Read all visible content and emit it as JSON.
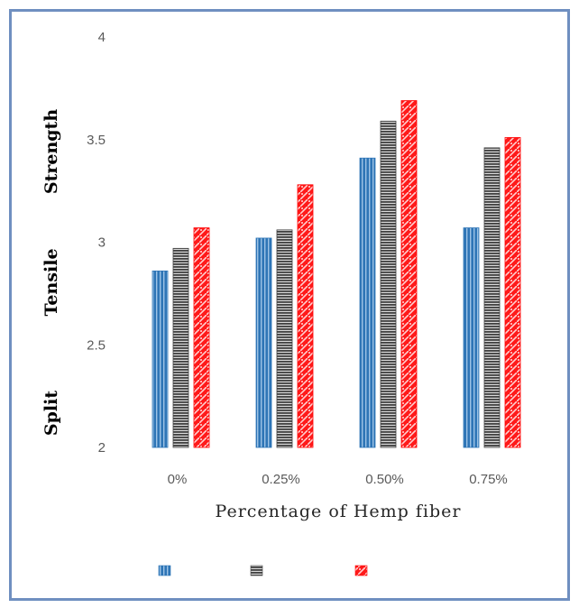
{
  "chart_data": {
    "type": "bar",
    "categories": [
      "0%",
      "0.25%",
      "0.50%",
      "0.75%"
    ],
    "series": [
      {
        "values": [
          2.86,
          3.02,
          3.41,
          3.07
        ],
        "color": "#2e75b6",
        "pattern": "vertical-stripes"
      },
      {
        "values": [
          2.97,
          3.06,
          3.59,
          3.46
        ],
        "color": "#404040",
        "pattern": "horizontal-stripes"
      },
      {
        "values": [
          3.07,
          3.28,
          3.69,
          3.51
        ],
        "color": "#ff0000",
        "pattern": "diagonal-pattern"
      }
    ],
    "xlabel": "Percentage of Hemp fiber",
    "ylabel_words": [
      "Split",
      "Tensile",
      "Strength"
    ],
    "ylim": [
      2,
      4
    ],
    "yticks": [
      "2",
      "2.5",
      "3",
      "3.5",
      "4"
    ],
    "ytick_values": [
      2,
      2.5,
      3,
      3.5,
      4
    ],
    "grid": false,
    "legend_position": "bottom",
    "legend_entries": [
      "",
      "",
      ""
    ]
  }
}
